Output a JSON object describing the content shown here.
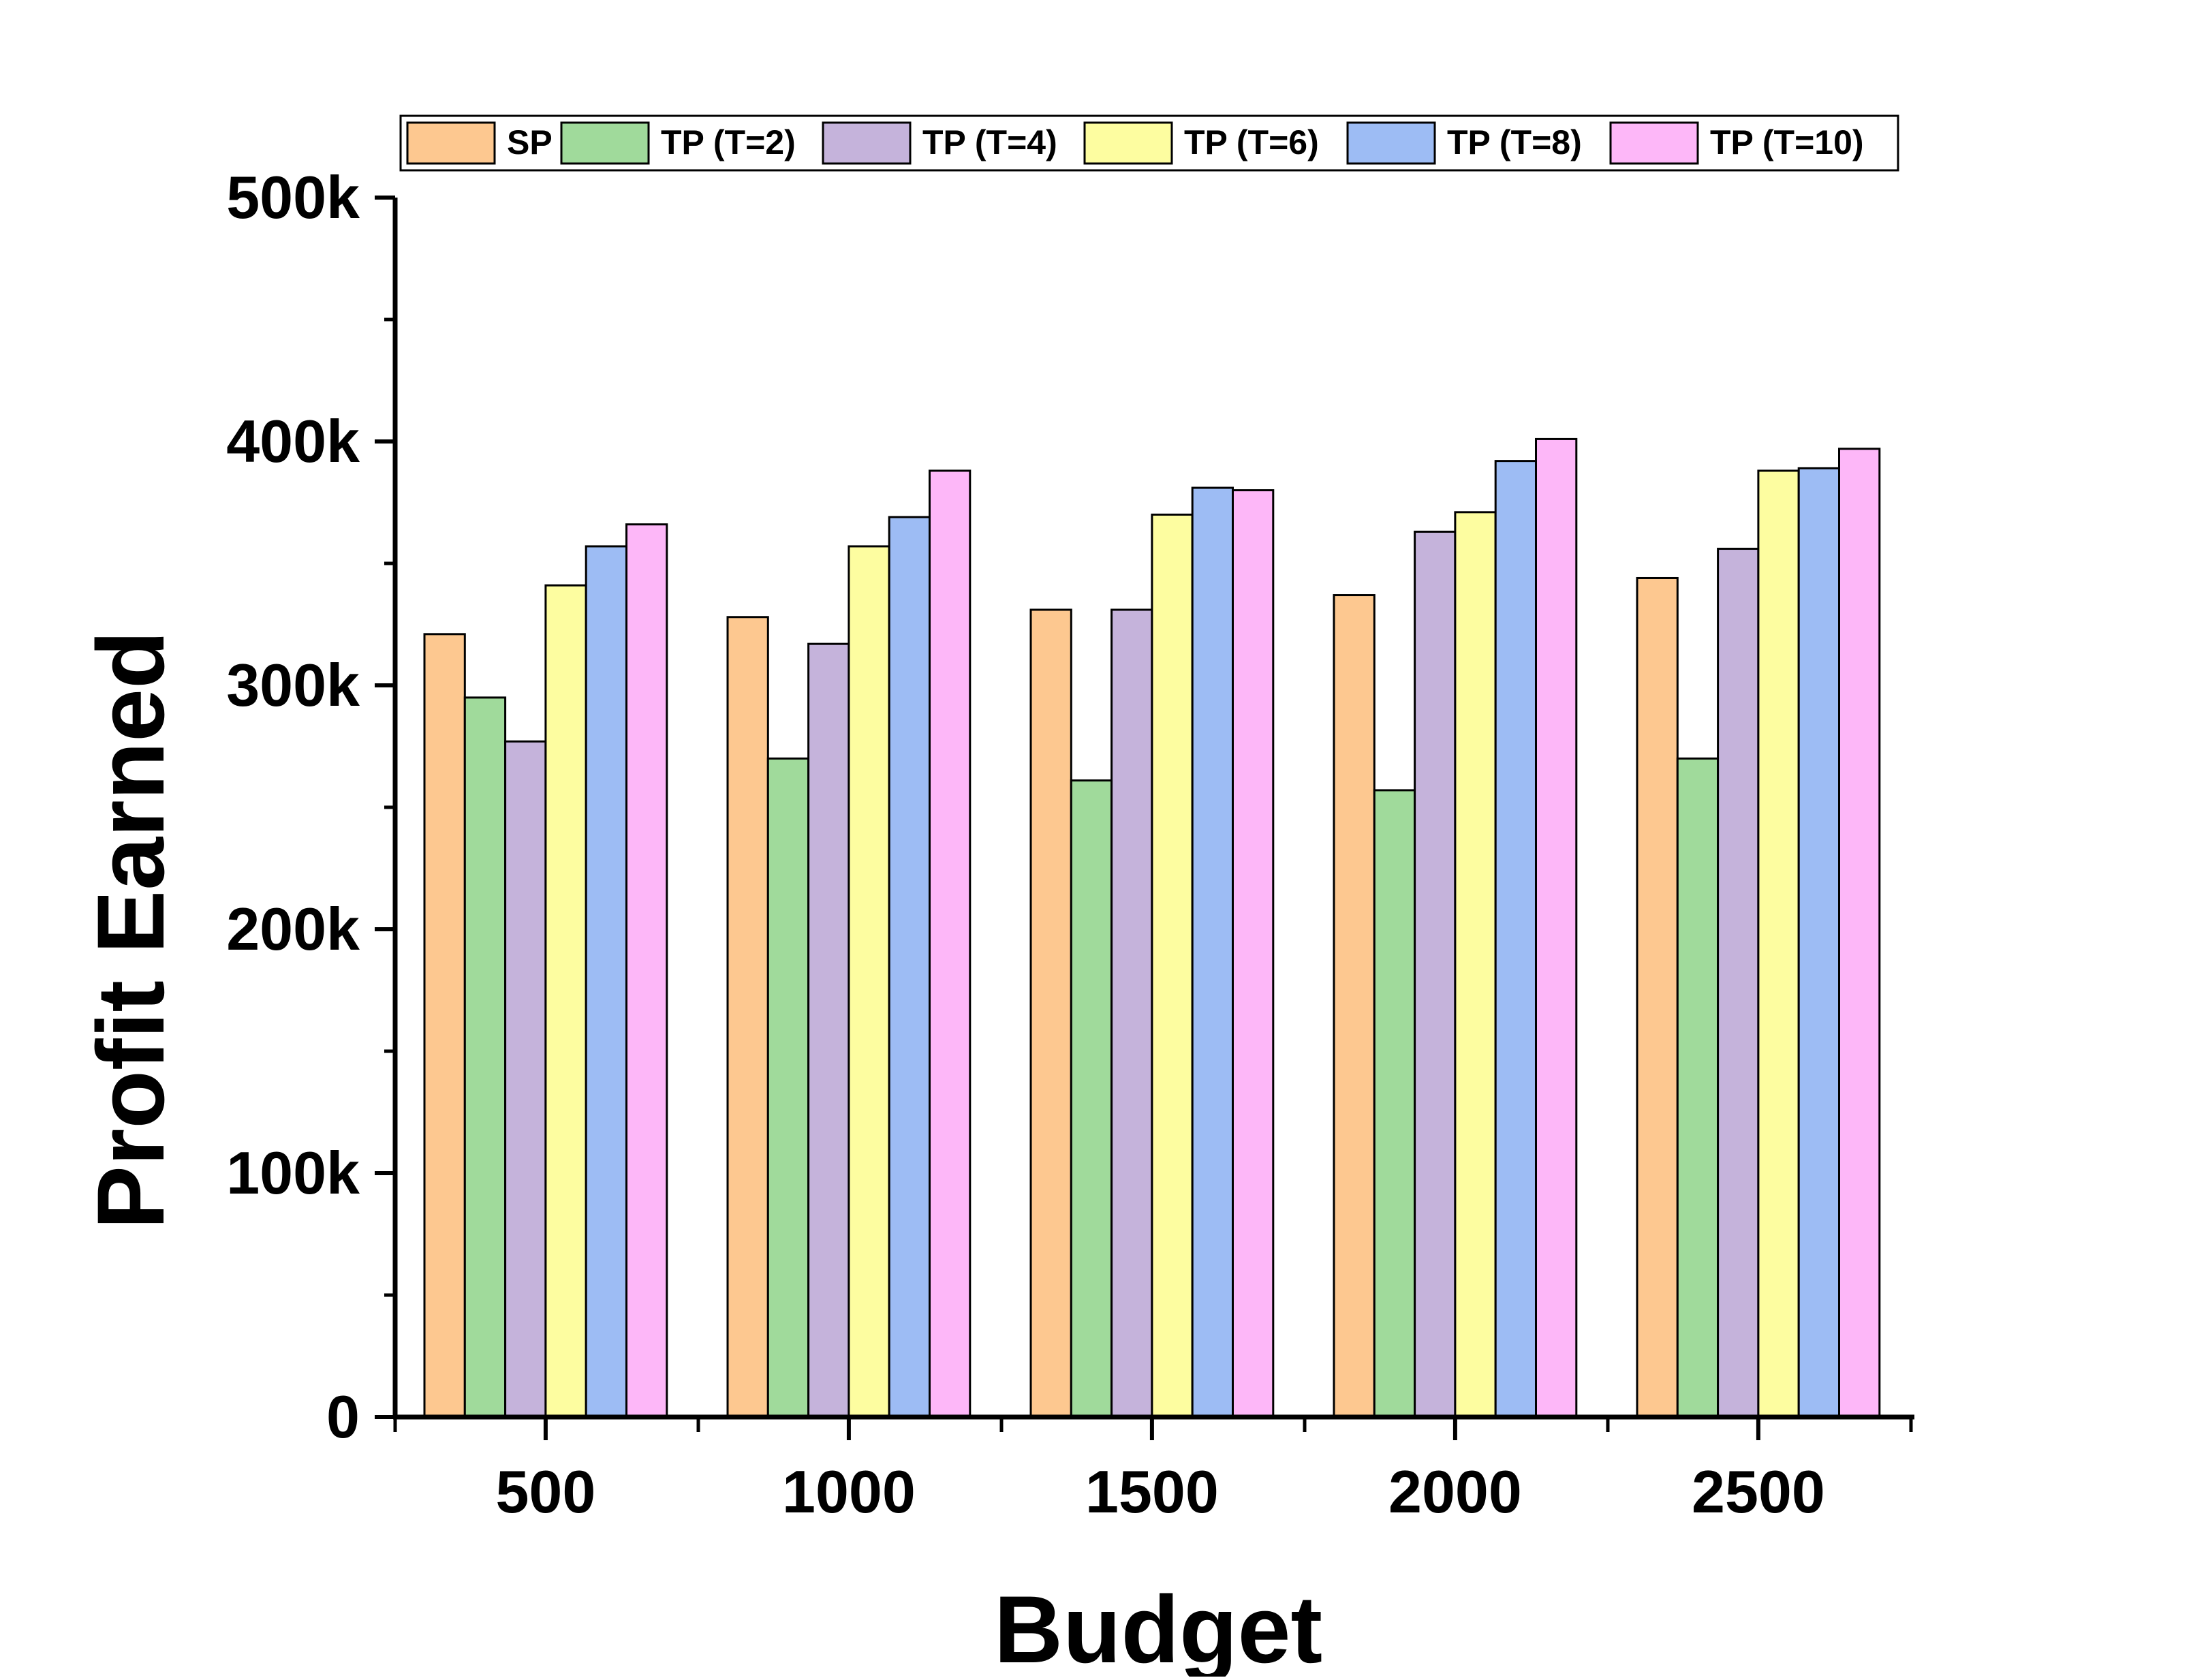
{
  "chart_data": {
    "type": "bar",
    "title": "",
    "xlabel": "Budget",
    "ylabel": "Profit Earned",
    "categories": [
      "500",
      "1000",
      "1500",
      "2000",
      "2500"
    ],
    "ylim": [
      0,
      500000
    ],
    "yticks": [
      {
        "value": 0,
        "label": "0"
      },
      {
        "value": 100000,
        "label": "100k"
      },
      {
        "value": 200000,
        "label": "200k"
      },
      {
        "value": 300000,
        "label": "300k"
      },
      {
        "value": 400000,
        "label": "400k"
      },
      {
        "value": 500000,
        "label": "500k"
      }
    ],
    "grid": false,
    "legend_position": "top",
    "series": [
      {
        "name": "SP",
        "color": "#FDC890",
        "values": [
          321000,
          328000,
          331000,
          337000,
          344000
        ]
      },
      {
        "name": "TP (T=2)",
        "color": "#A0DA9B",
        "values": [
          295000,
          270000,
          261000,
          257000,
          270000
        ]
      },
      {
        "name": "TP (T=4)",
        "color": "#C5B3DB",
        "values": [
          277000,
          317000,
          331000,
          363000,
          356000
        ]
      },
      {
        "name": "TP (T=6)",
        "color": "#FDFDA0",
        "values": [
          341000,
          357000,
          370000,
          371000,
          388000
        ]
      },
      {
        "name": "TP (T=8)",
        "color": "#9DBCF4",
        "values": [
          357000,
          369000,
          381000,
          392000,
          389000
        ]
      },
      {
        "name": "TP (T=10)",
        "color": "#FDB7F8",
        "values": [
          366000,
          388000,
          380000,
          401000,
          397000
        ]
      }
    ]
  }
}
